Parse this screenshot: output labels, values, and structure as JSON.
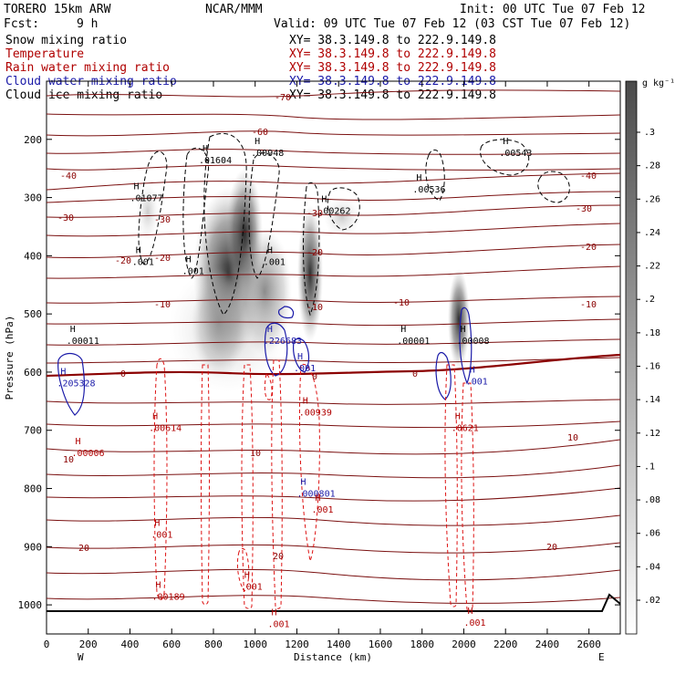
{
  "header": {
    "model": "TORERO  15km ARW",
    "center": "NCAR/MMM",
    "init": "Init: 00 UTC Tue 07 Feb 12",
    "fcst_label": "Fcst:",
    "fcst_value": "9 h",
    "valid": "Valid: 09 UTC Tue 07 Feb 12 (03 CST Tue 07 Feb 12)"
  },
  "fields": [
    {
      "name": "Snow mixing ratio",
      "xy": "XY=  38.3.149.8 to 222.9.149.8",
      "color": "#000000"
    },
    {
      "name": "Temperature",
      "xy": "XY=  38.3.149.8 to 222.9.149.8",
      "color": "#b00000"
    },
    {
      "name": "Rain water mixing ratio",
      "xy": "XY=  38.3.149.8 to 222.9.149.8",
      "color": "#b00000"
    },
    {
      "name": "Cloud water mixing ratio",
      "xy": "XY=  38.3.149.8 to 222.9.149.8",
      "color": "#1a1aa8"
    },
    {
      "name": "Cloud ice mixing ratio",
      "xy": "XY=  38.3.149.8 to 222.9.149.8",
      "color": "#000000"
    }
  ],
  "chart_data": {
    "type": "heatmap",
    "xlabel": "Distance (km)",
    "ylabel": "Pressure (hPa)",
    "x_ticks": [
      0,
      200,
      400,
      600,
      800,
      1000,
      1200,
      1400,
      1600,
      1800,
      2000,
      2200,
      2400,
      2600
    ],
    "y_ticks": [
      200,
      300,
      400,
      500,
      600,
      700,
      800,
      900,
      1000
    ],
    "xlim": [
      0,
      2750
    ],
    "ylim": [
      1050,
      100
    ],
    "end_labels": [
      "W",
      "E"
    ],
    "colorbar": {
      "unit": "g kg⁻¹",
      "ticks": [
        ".3",
        ".28",
        ".26",
        ".24",
        ".22",
        ".2",
        ".18",
        ".16",
        ".14",
        ".12",
        ".1",
        ".08",
        ".06",
        ".04",
        ".02"
      ]
    },
    "temperature_contours": [
      {
        "value": -70,
        "label": "-70"
      },
      {
        "value": -60,
        "label": "-60"
      },
      {
        "value": -40,
        "label": "-40"
      },
      {
        "value": -30,
        "label": "-30"
      },
      {
        "value": -20,
        "label": "-20"
      },
      {
        "value": -10,
        "label": "-10"
      },
      {
        "value": 0,
        "label": "0"
      },
      {
        "value": 10,
        "label": "10"
      },
      {
        "value": 20,
        "label": "20"
      }
    ],
    "extrema_labels": [
      {
        "text": ".01077",
        "x": 400,
        "p": 300,
        "color": "#000000"
      },
      {
        "text": ".01604",
        "x": 730,
        "p": 235,
        "color": "#000000"
      },
      {
        "text": ".00948",
        "x": 980,
        "p": 222,
        "color": "#000000"
      },
      {
        "text": ".00262",
        "x": 1300,
        "p": 322,
        "color": "#000000"
      },
      {
        "text": ".00536",
        "x": 1755,
        "p": 285,
        "color": "#000000"
      },
      {
        "text": ".00543",
        "x": 2170,
        "p": 222,
        "color": "#000000"
      },
      {
        "text": ".001",
        "x": 410,
        "p": 410,
        "color": "#000000"
      },
      {
        "text": ".001",
        "x": 650,
        "p": 425,
        "color": "#000000"
      },
      {
        "text": ".001",
        "x": 1040,
        "p": 410,
        "color": "#000000"
      },
      {
        "text": ".00011",
        "x": 95,
        "p": 545,
        "color": "#000000"
      },
      {
        "text": ".00001",
        "x": 1680,
        "p": 545,
        "color": "#000000"
      },
      {
        "text": ".00008",
        "x": 1965,
        "p": 545,
        "color": "#000000"
      },
      {
        "text": ".226683",
        "x": 1040,
        "p": 545,
        "color": "#1a1aa8"
      },
      {
        "text": ".205328",
        "x": 50,
        "p": 618,
        "color": "#1a1aa8"
      },
      {
        "text": ".001",
        "x": 1185,
        "p": 592,
        "color": "#1a1aa8"
      },
      {
        "text": ".001",
        "x": 2010,
        "p": 615,
        "color": "#1a1aa8"
      },
      {
        "text": ".000801",
        "x": 1200,
        "p": 808,
        "color": "#1a1aa8"
      },
      {
        "text": ".00614",
        "x": 490,
        "p": 695,
        "color": "#b00000"
      },
      {
        "text": ".00006",
        "x": 120,
        "p": 738,
        "color": "#b00000"
      },
      {
        "text": ".00939",
        "x": 1210,
        "p": 668,
        "color": "#b00000"
      },
      {
        "text": ".0621",
        "x": 1940,
        "p": 695,
        "color": "#b00000"
      },
      {
        "text": ".001",
        "x": 1270,
        "p": 835,
        "color": "#b00000"
      },
      {
        "text": ".001",
        "x": 500,
        "p": 878,
        "color": "#b00000"
      },
      {
        "text": ".00189",
        "x": 505,
        "p": 985,
        "color": "#b00000"
      },
      {
        "text": ".001",
        "x": 930,
        "p": 968,
        "color": "#b00000"
      },
      {
        "text": ".001",
        "x": 1060,
        "p": 1032,
        "color": "#b00000"
      },
      {
        "text": ".001",
        "x": 2000,
        "p": 1030,
        "color": "#b00000"
      }
    ]
  }
}
